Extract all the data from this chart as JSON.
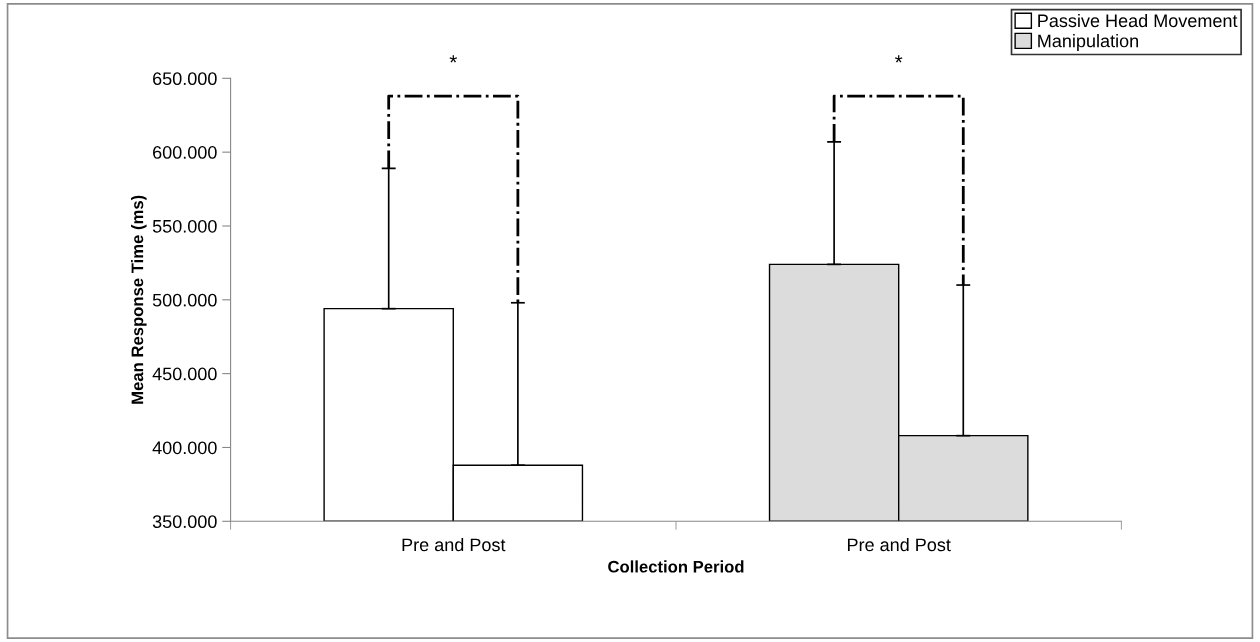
{
  "chart_data": {
    "type": "bar",
    "xlabel": "Collection Period",
    "ylabel": "Mean Response Time (ms)",
    "categories": [
      "Pre and Post",
      "Pre and Post"
    ],
    "series": [
      {
        "name": "Passive Head Movement",
        "color": "#ffffff",
        "values": [
          494,
          null
        ],
        "errors": [
          [
            494,
            589
          ],
          null
        ]
      },
      {
        "color": "#ffffff",
        "values": [
          388,
          null
        ],
        "errors": [
          [
            388,
            498
          ],
          null
        ]
      },
      {
        "name": "Manipulation",
        "color": "#dcdcdc",
        "values": [
          null,
          524
        ],
        "errors": [
          null,
          [
            524,
            607
          ]
        ]
      },
      {
        "color": "#dcdcdc",
        "values": [
          null,
          408
        ],
        "errors": [
          null,
          [
            408,
            510
          ]
        ]
      }
    ],
    "ylim": [
      350,
      650
    ],
    "yticks": [
      {
        "value": 350,
        "label": "350.000"
      },
      {
        "value": 400,
        "label": "400.000"
      },
      {
        "value": 450,
        "label": "450.000"
      },
      {
        "value": 500,
        "label": "500.000"
      },
      {
        "value": 550,
        "label": "550.000"
      },
      {
        "value": 600,
        "label": "600.000"
      },
      {
        "value": 650,
        "label": "650.000"
      }
    ],
    "annotations": [
      "*",
      "*"
    ],
    "grid": false,
    "legend": "top right"
  }
}
